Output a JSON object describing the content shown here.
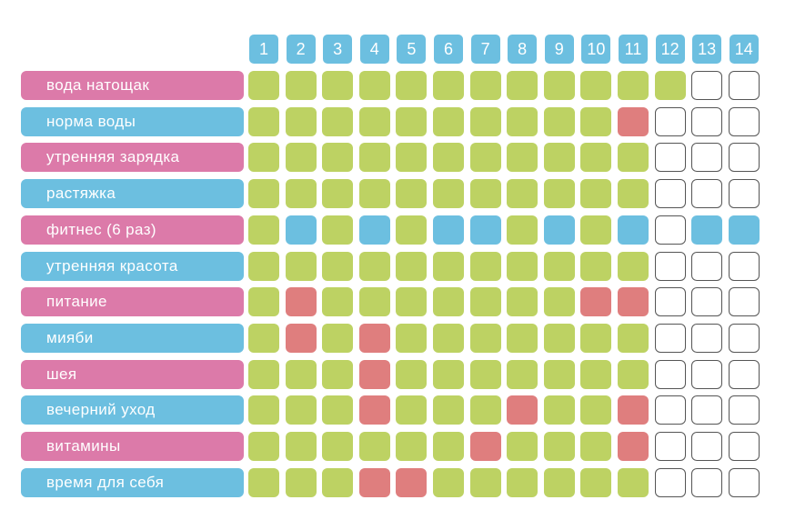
{
  "days": [
    "1",
    "2",
    "3",
    "4",
    "5",
    "6",
    "7",
    "8",
    "9",
    "10",
    "11",
    "12",
    "13",
    "14"
  ],
  "colors": {
    "pink": "#dc7aa9",
    "blue": "#6cbfe0",
    "green": "#bdd263",
    "red": "#df7e7e",
    "header": "#6cbfe0"
  },
  "habits": [
    {
      "label": "вода натощак",
      "color": "pink",
      "cells": [
        "g",
        "g",
        "g",
        "g",
        "g",
        "g",
        "g",
        "g",
        "g",
        "g",
        "g",
        "g",
        "e",
        "e"
      ]
    },
    {
      "label": "норма воды",
      "color": "blue",
      "cells": [
        "g",
        "g",
        "g",
        "g",
        "g",
        "g",
        "g",
        "g",
        "g",
        "g",
        "r",
        "e",
        "e",
        "e"
      ]
    },
    {
      "label": "утренняя зарядка",
      "color": "pink",
      "cells": [
        "g",
        "g",
        "g",
        "g",
        "g",
        "g",
        "g",
        "g",
        "g",
        "g",
        "g",
        "e",
        "e",
        "e"
      ]
    },
    {
      "label": "растяжка",
      "color": "blue",
      "cells": [
        "g",
        "g",
        "g",
        "g",
        "g",
        "g",
        "g",
        "g",
        "g",
        "g",
        "g",
        "e",
        "e",
        "e"
      ]
    },
    {
      "label": "фитнес (6 раз)",
      "color": "pink",
      "cells": [
        "g",
        "b",
        "g",
        "b",
        "g",
        "b",
        "b",
        "g",
        "b",
        "g",
        "b",
        "e",
        "b",
        "b"
      ]
    },
    {
      "label": "утренняя красота",
      "color": "blue",
      "cells": [
        "g",
        "g",
        "g",
        "g",
        "g",
        "g",
        "g",
        "g",
        "g",
        "g",
        "g",
        "e",
        "e",
        "e"
      ]
    },
    {
      "label": "питание",
      "color": "pink",
      "cells": [
        "g",
        "r",
        "g",
        "g",
        "g",
        "g",
        "g",
        "g",
        "g",
        "r",
        "r",
        "e",
        "e",
        "e"
      ]
    },
    {
      "label": "мияби",
      "color": "blue",
      "cells": [
        "g",
        "r",
        "g",
        "r",
        "g",
        "g",
        "g",
        "g",
        "g",
        "g",
        "g",
        "e",
        "e",
        "e"
      ]
    },
    {
      "label": "шея",
      "color": "pink",
      "cells": [
        "g",
        "g",
        "g",
        "r",
        "g",
        "g",
        "g",
        "g",
        "g",
        "g",
        "g",
        "e",
        "e",
        "e"
      ]
    },
    {
      "label": "вечерний уход",
      "color": "blue",
      "cells": [
        "g",
        "g",
        "g",
        "r",
        "g",
        "g",
        "g",
        "r",
        "g",
        "g",
        "r",
        "e",
        "e",
        "e"
      ]
    },
    {
      "label": "витамины",
      "color": "pink",
      "cells": [
        "g",
        "g",
        "g",
        "g",
        "g",
        "g",
        "r",
        "g",
        "g",
        "g",
        "r",
        "e",
        "e",
        "e"
      ]
    },
    {
      "label": "время для себя",
      "color": "blue",
      "cells": [
        "g",
        "g",
        "g",
        "r",
        "r",
        "g",
        "g",
        "g",
        "g",
        "g",
        "g",
        "e",
        "e",
        "e"
      ]
    }
  ]
}
